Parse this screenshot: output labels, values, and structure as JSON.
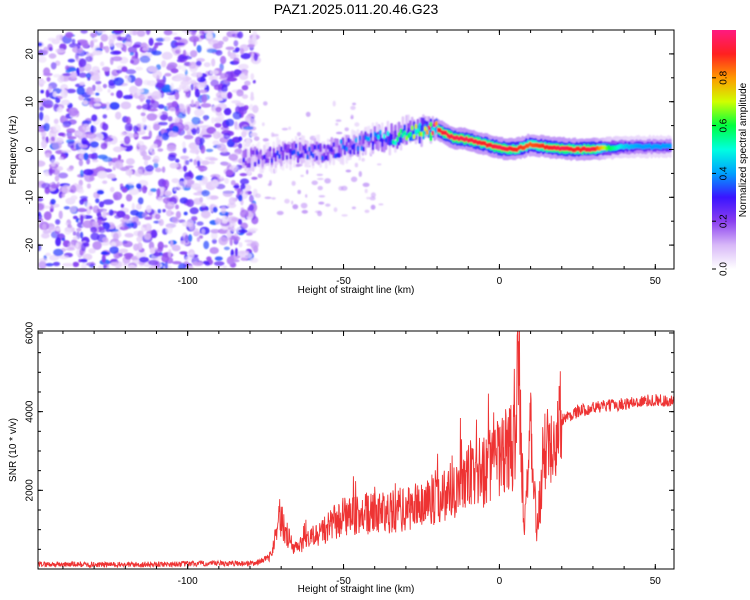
{
  "title": "PAZ1.2025.011.20.46.G23",
  "colors": {
    "snr_line": "#ee3333",
    "noise_purple": "#8a3ef0",
    "colormap": [
      "#ffffff",
      "#d8b8f8",
      "#8a3ef0",
      "#3a14ff",
      "#00a0ff",
      "#00ffe0",
      "#00ff40",
      "#d0ff00",
      "#ff9900",
      "#ff2020",
      "#ff1a80"
    ]
  },
  "chart_data": [
    {
      "type": "heatmap",
      "title": "PAZ1.2025.011.20.46.G23",
      "xlabel": "Height of straight line (km)",
      "ylabel": "Frequency (Hz)",
      "xlim": [
        -148,
        56
      ],
      "ylim": [
        -25,
        25
      ],
      "xticks": [
        -100,
        -50,
        0,
        50
      ],
      "yticks": [
        -20,
        -10,
        0,
        10,
        20
      ],
      "xtick_labels": [
        "-100",
        "-50",
        "0",
        "50"
      ],
      "ytick_labels": [
        "-20",
        "-10",
        "0",
        "10",
        "20"
      ],
      "colorbar": {
        "label": "Normalized spectral amplitude",
        "range": [
          0,
          1
        ],
        "ticks": [
          0.0,
          0.2,
          0.4,
          0.6,
          0.8
        ],
        "tick_labels": [
          "0.0",
          "0.2",
          "0.4",
          "0.6",
          "0.8"
        ]
      },
      "ridge": {
        "x": [
          -82,
          -75,
          -70,
          -65,
          -60,
          -55,
          -50,
          -45,
          -40,
          -35,
          -30,
          -25,
          -20,
          -15,
          -10,
          -5,
          0,
          5,
          10,
          15,
          20,
          25,
          30,
          35,
          40,
          45,
          50,
          55
        ],
        "freq": [
          -2.0,
          -1.5,
          -1.0,
          -0.5,
          -0.5,
          -0.5,
          0.5,
          1.0,
          2.0,
          2.5,
          3.5,
          4.0,
          4.2,
          2.5,
          2.0,
          1.2,
          0.3,
          0.0,
          1.0,
          0.5,
          0.2,
          0.0,
          0.1,
          0.3,
          0.5,
          0.6,
          0.6,
          0.7
        ],
        "amplitude": [
          0.25,
          0.25,
          0.3,
          0.3,
          0.3,
          0.3,
          0.35,
          0.35,
          0.4,
          0.45,
          0.6,
          0.75,
          0.9,
          0.95,
          0.95,
          0.9,
          0.95,
          0.9,
          0.85,
          0.9,
          0.95,
          0.9,
          0.95,
          0.6,
          0.45,
          0.4,
          0.4,
          0.4
        ]
      },
      "noise_region_x": [
        -148,
        -78
      ]
    },
    {
      "type": "line",
      "xlabel": "Height of straight line (km)",
      "ylabel": "SNR (10 * v/v)",
      "xlim": [
        -148,
        56
      ],
      "ylim": [
        0,
        6050
      ],
      "xticks": [
        -100,
        -50,
        0,
        50
      ],
      "yticks": [
        2000,
        4000,
        6000
      ],
      "xtick_labels": [
        "-100",
        "-50",
        "0",
        "50"
      ],
      "ytick_labels": [
        "2000",
        "4000",
        "6000"
      ],
      "series": [
        {
          "color": "#ee3333",
          "trend_x": [
            -148,
            -120,
            -90,
            -78,
            -73,
            -71,
            -66,
            -60,
            -50,
            -40,
            -30,
            -20,
            -10,
            -5,
            0,
            4,
            5.5,
            6,
            7,
            8,
            10,
            12,
            15,
            20,
            25,
            30,
            40,
            50,
            56
          ],
          "trend_y": [
            120,
            110,
            140,
            150,
            350,
            1400,
            500,
            800,
            1300,
            1400,
            1500,
            1800,
            2300,
            2500,
            2800,
            3100,
            3200,
            6000,
            3000,
            1200,
            3300,
            1000,
            3200,
            3800,
            4000,
            4100,
            4200,
            4300,
            4250
          ]
        }
      ]
    }
  ]
}
